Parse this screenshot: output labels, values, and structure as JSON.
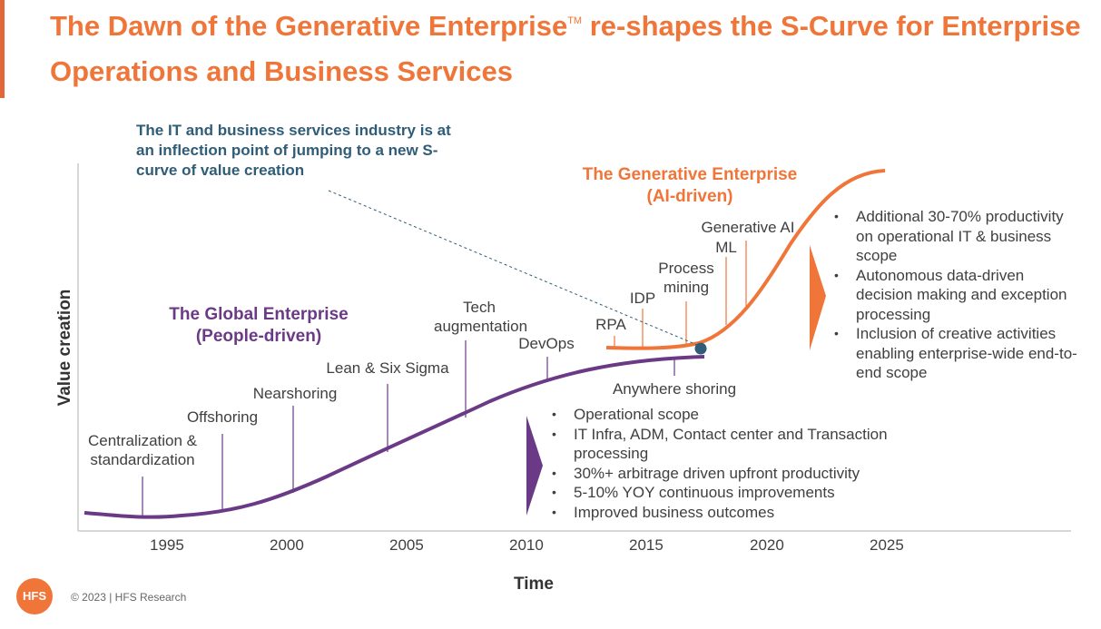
{
  "title": {
    "main": "The Dawn of the Generative Enterprise",
    "tm": "TM",
    "rest": " re-shapes the S-Curve for Enterprise Operations and Business Services"
  },
  "annotation": "The IT and business services industry is at an inflection point of jumping to a new S-curve of value creation",
  "axes": {
    "y_label": "Value creation",
    "x_label": "Time",
    "years": [
      "1995",
      "2000",
      "2005",
      "2010",
      "2015",
      "2020",
      "2025"
    ]
  },
  "global_enterprise": {
    "title": "The Global Enterprise",
    "subtitle": "(People-driven)",
    "color": "#6B3A87",
    "milestones": [
      "Centralization & standardization",
      "Offshoring",
      "Nearshoring",
      "Lean & Six Sigma",
      "Tech augmentation",
      "DevOps",
      "Anywhere shoring"
    ],
    "bullets": [
      "Operational scope",
      "IT Infra, ADM, Contact center and Transaction processing",
      "30%+ arbitrage driven upfront productivity",
      "5-10% YOY continuous improvements",
      "Improved business outcomes"
    ]
  },
  "generative_enterprise": {
    "title": "The Generative Enterprise",
    "subtitle": "(AI-driven)",
    "color": "#F07539",
    "milestones": [
      "RPA",
      "IDP",
      "Process mining",
      "ML",
      "Generative AI"
    ],
    "bullets": [
      "Additional 30-70% productivity on operational IT & business scope",
      "Autonomous data-driven decision making and exception processing",
      "Inclusion of creative activities enabling enterprise-wide end-to-end scope"
    ]
  },
  "footer": {
    "logo": "HFS",
    "copyright": "© 2023 | HFS Research"
  },
  "colors": {
    "accent": "#F07539",
    "purple": "#6B3A87",
    "annotation": "#2F5D78"
  }
}
